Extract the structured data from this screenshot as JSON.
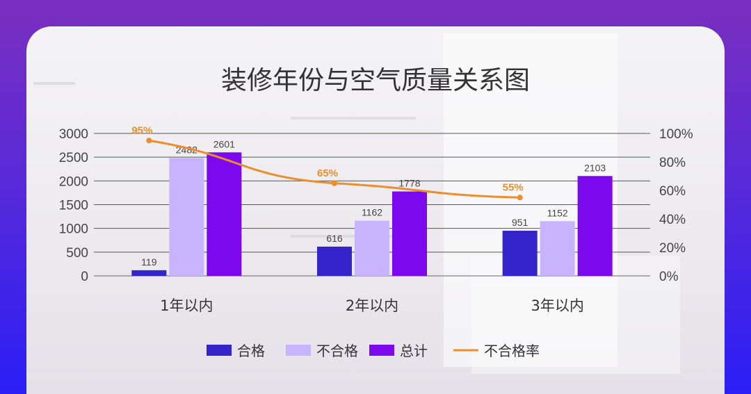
{
  "chart_data": {
    "type": "bar",
    "title": "装修年份与空气质量关系图",
    "categories": [
      "1年以内",
      "2年以内",
      "3年以内"
    ],
    "series": [
      {
        "name": "合格",
        "values": [
          119,
          616,
          951
        ],
        "color": "#3325c9",
        "axis": "left"
      },
      {
        "name": "不合格",
        "values": [
          2482,
          1162,
          1152
        ],
        "color": "#c7b3ff",
        "axis": "left"
      },
      {
        "name": "总计",
        "values": [
          2601,
          1778,
          2103
        ],
        "color": "#7c09ee",
        "axis": "left"
      }
    ],
    "line_series": {
      "name": "不合格率",
      "type": "line",
      "values": [
        0.95,
        0.65,
        0.55
      ],
      "labels": [
        "95%",
        "65%",
        "55%"
      ],
      "color": "#ea8e2e",
      "axis": "right"
    },
    "ylim": [
      0,
      3000
    ],
    "yticks": [
      0,
      500,
      1000,
      1500,
      2000,
      2500,
      3000
    ],
    "y2lim": [
      0,
      1
    ],
    "y2ticks": [
      "0%",
      "20%",
      "40%",
      "60%",
      "80%",
      "100%"
    ],
    "grid": true,
    "legend_position": "bottom"
  }
}
